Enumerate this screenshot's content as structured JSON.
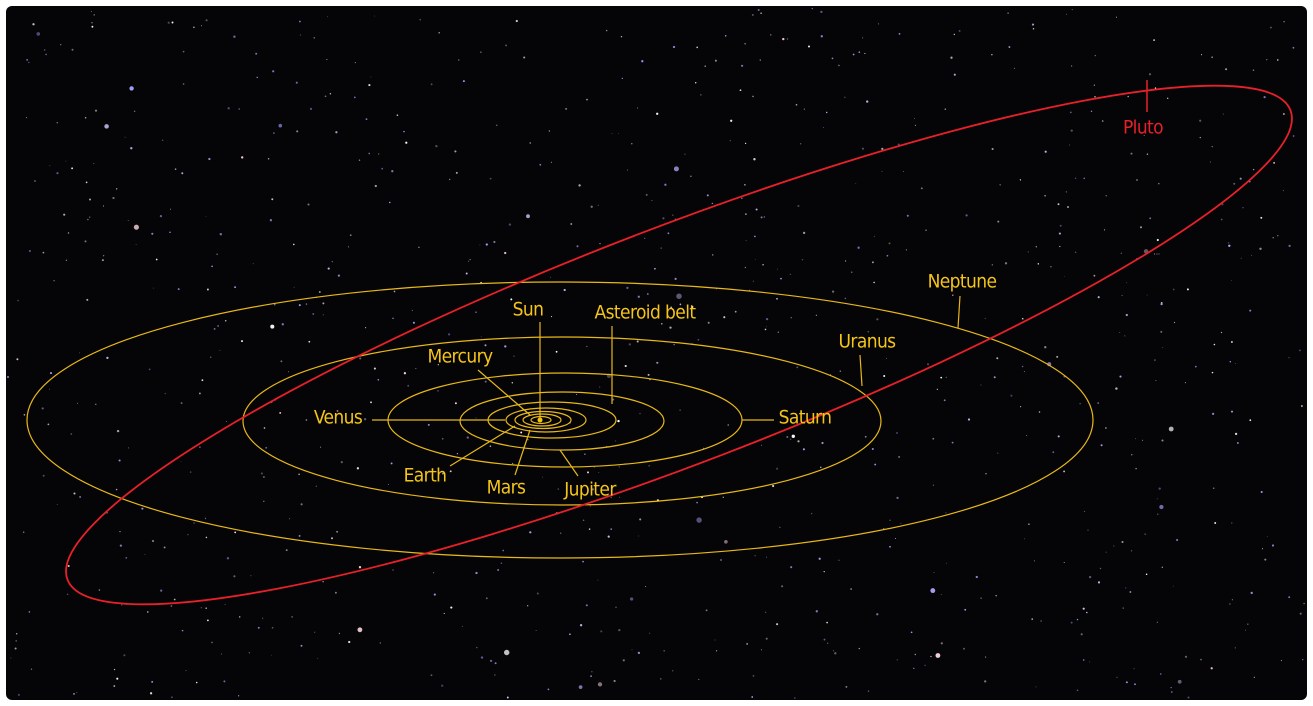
{
  "labels": {
    "sun": "Sun",
    "asteroid_belt": "Asteroid belt",
    "mercury": "Mercury",
    "venus": "Venus",
    "earth": "Earth",
    "mars": "Mars",
    "jupiter": "Jupiter",
    "saturn": "Saturn",
    "uranus": "Uranus",
    "neptune": "Neptune",
    "pluto": "Pluto"
  }
}
